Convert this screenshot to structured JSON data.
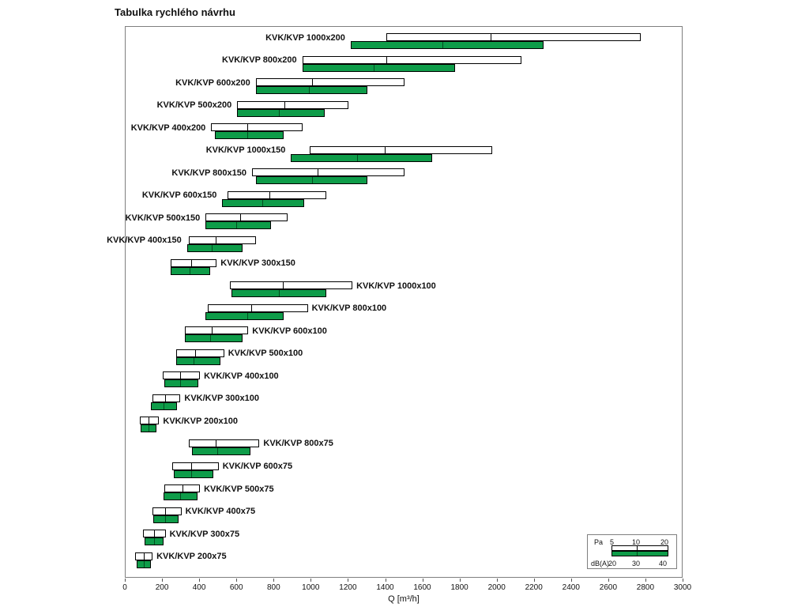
{
  "title": "Tabulka rychlého návrhu",
  "chart_data": {
    "type": "bar",
    "orientation": "horizontal-range",
    "title": "Tabulka rychlého návrhu",
    "xlabel": "Q [m³/h]",
    "xlim": [
      0,
      3000
    ],
    "x_ticks": [
      0,
      200,
      400,
      600,
      800,
      1000,
      1200,
      1400,
      1600,
      1800,
      2000,
      2200,
      2400,
      2600,
      2800,
      3000
    ],
    "grid": false,
    "colors": {
      "pa_bar": "#ffffff",
      "db_bar": "#0e9c49",
      "bar_border": "#000000"
    },
    "series_meaning": {
      "pa": "Airflow range at static pressure 5 / 10 / 20 Pa (white bar: left edge = 5 Pa, middle tick = 10 Pa, right edge = 20 Pa)",
      "db": "Airflow range at noise level 20 / 30 / 40 dB(A) (green bar: left edge = 20 dB(A), middle tick = 30 dB(A), right edge = 40 dB(A))"
    },
    "rows": [
      {
        "label": "KVK/KVP 1000x200",
        "side": "left",
        "pa": [
          1400,
          1960,
          2770
        ],
        "db": [
          1210,
          1700,
          2250
        ]
      },
      {
        "label": "KVK/KVP 800x200",
        "side": "left",
        "pa": [
          950,
          1400,
          2130
        ],
        "db": [
          950,
          1330,
          1770
        ]
      },
      {
        "label": "KVK/KVP 600x200",
        "side": "left",
        "pa": [
          700,
          1000,
          1500
        ],
        "db": [
          700,
          980,
          1300
        ]
      },
      {
        "label": "KVK/KVP 500x200",
        "side": "left",
        "pa": [
          600,
          850,
          1200
        ],
        "db": [
          600,
          820,
          1070
        ]
      },
      {
        "label": "KVK/KVP 400x200",
        "side": "left",
        "pa": [
          460,
          650,
          950
        ],
        "db": [
          480,
          650,
          850
        ]
      },
      {
        "label": "KVK/KVP 1000x150",
        "side": "left",
        "pa": [
          990,
          1390,
          1970
        ],
        "db": [
          890,
          1240,
          1650
        ]
      },
      {
        "label": "KVK/KVP 800x150",
        "side": "left",
        "pa": [
          680,
          1030,
          1500
        ],
        "db": [
          700,
          1000,
          1300
        ]
      },
      {
        "label": "KVK/KVP 600x150",
        "side": "left",
        "pa": [
          550,
          770,
          1080
        ],
        "db": [
          520,
          730,
          960
        ]
      },
      {
        "label": "KVK/KVP 500x150",
        "side": "left",
        "pa": [
          430,
          610,
          870
        ],
        "db": [
          430,
          590,
          780
        ]
      },
      {
        "label": "KVK/KVP 400x150",
        "side": "left",
        "pa": [
          340,
          480,
          700
        ],
        "db": [
          330,
          460,
          630
        ]
      },
      {
        "label": "KVK/KVP 300x150",
        "side": "right",
        "pa": [
          240,
          350,
          490
        ],
        "db": [
          240,
          340,
          455
        ]
      },
      {
        "label": "KVK/KVP 1000x100",
        "side": "right",
        "pa": [
          560,
          840,
          1220
        ],
        "db": [
          570,
          820,
          1080
        ]
      },
      {
        "label": "KVK/KVP 800x100",
        "side": "right",
        "pa": [
          440,
          670,
          980
        ],
        "db": [
          430,
          650,
          850
        ]
      },
      {
        "label": "KVK/KVP 600x100",
        "side": "right",
        "pa": [
          320,
          460,
          660
        ],
        "db": [
          320,
          450,
          630
        ]
      },
      {
        "label": "KVK/KVP 500x100",
        "side": "right",
        "pa": [
          270,
          370,
          530
        ],
        "db": [
          270,
          360,
          510
        ]
      },
      {
        "label": "KVK/KVP 400x100",
        "side": "right",
        "pa": [
          200,
          290,
          400
        ],
        "db": [
          210,
          290,
          390
        ]
      },
      {
        "label": "KVK/KVP 300x100",
        "side": "right",
        "pa": [
          145,
          210,
          295
        ],
        "db": [
          135,
          200,
          275
        ]
      },
      {
        "label": "KVK/KVP 200x100",
        "side": "right",
        "pa": [
          75,
          120,
          180
        ],
        "db": [
          80,
          120,
          165
        ]
      },
      {
        "label": "KVK/KVP 800x75",
        "side": "right",
        "pa": [
          340,
          480,
          720
        ],
        "db": [
          355,
          490,
          670
        ]
      },
      {
        "label": "KVK/KVP 600x75",
        "side": "right",
        "pa": [
          250,
          350,
          500
        ],
        "db": [
          260,
          350,
          470
        ]
      },
      {
        "label": "KVK/KVP 500x75",
        "side": "right",
        "pa": [
          210,
          300,
          400
        ],
        "db": [
          205,
          290,
          385
        ]
      },
      {
        "label": "KVK/KVP 400x75",
        "side": "right",
        "pa": [
          145,
          210,
          300
        ],
        "db": [
          150,
          210,
          285
        ]
      },
      {
        "label": "KVK/KVP 300x75",
        "side": "right",
        "pa": [
          95,
          150,
          215
        ],
        "db": [
          100,
          150,
          205
        ]
      },
      {
        "label": "KVK/KVP 200x75",
        "side": "right",
        "pa": [
          50,
          95,
          145
        ],
        "db": [
          60,
          95,
          135
        ]
      }
    ],
    "legend": {
      "pa_label": "Pa",
      "pa_ticks": [
        "5",
        "10",
        "20"
      ],
      "db_label": "dB(A)",
      "db_ticks": [
        "20",
        "30",
        "40"
      ]
    }
  }
}
